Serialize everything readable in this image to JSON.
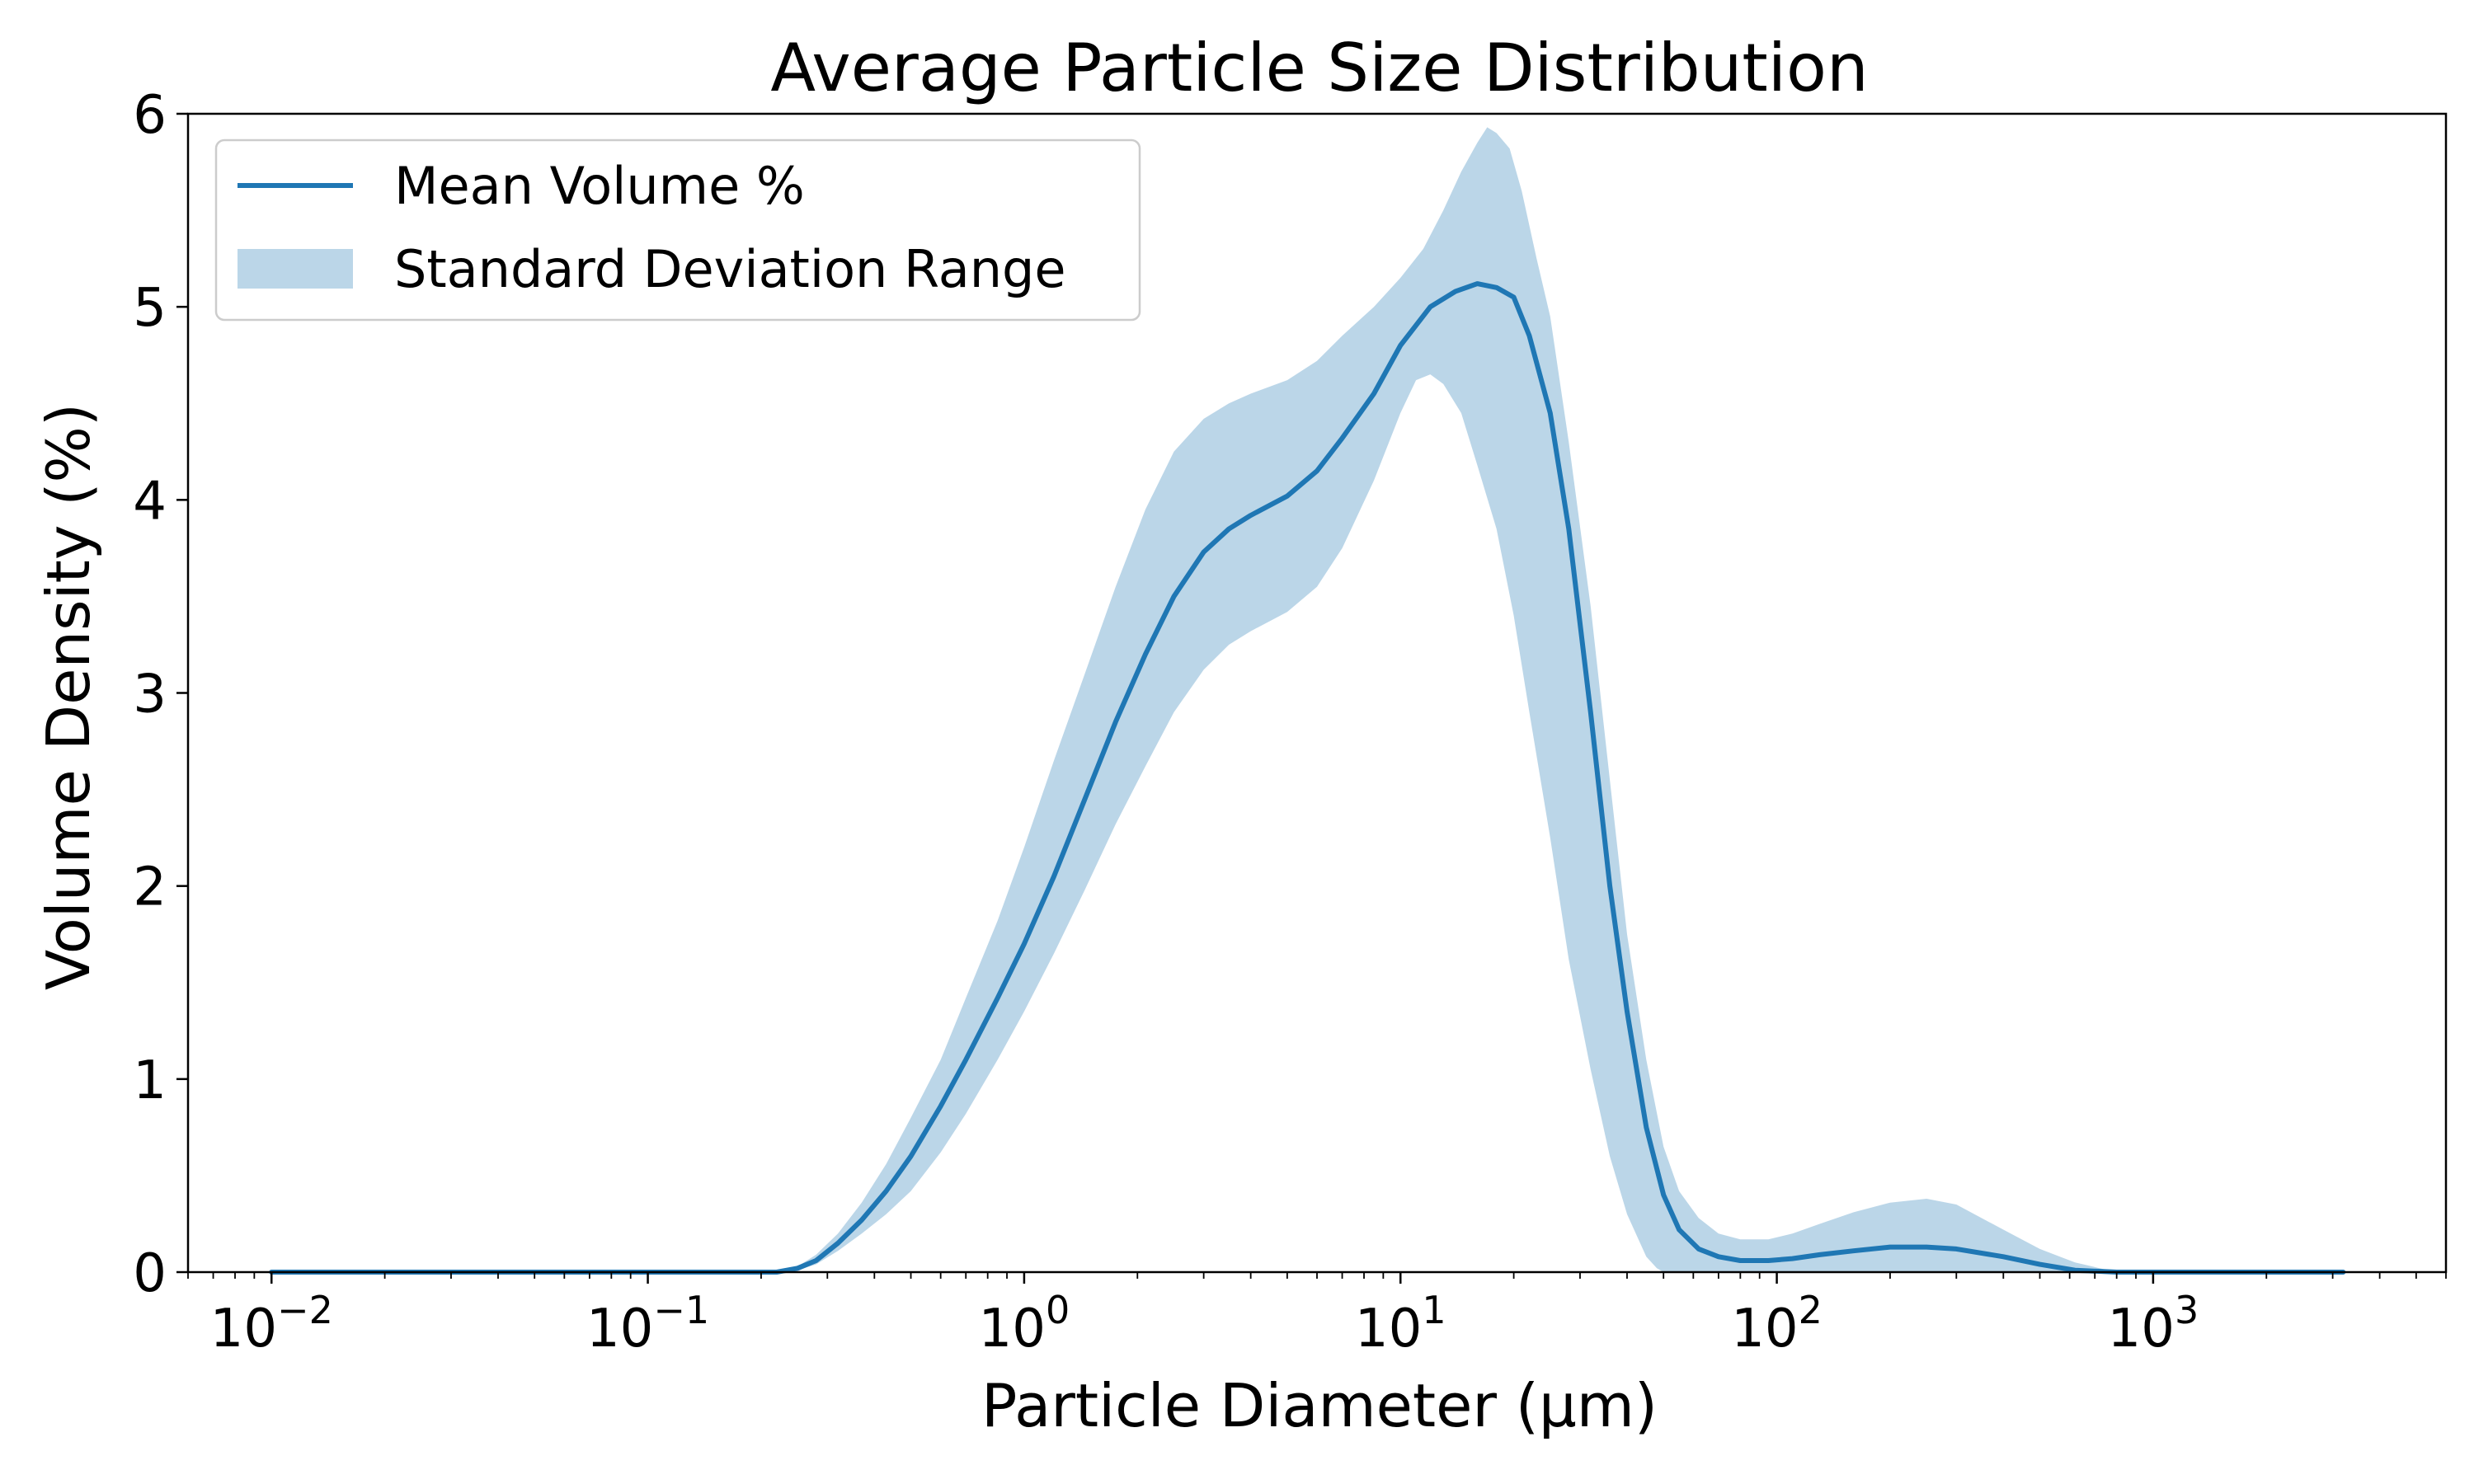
{
  "chart_data": {
    "type": "line",
    "title": "Average Particle Size Distribution",
    "xlabel": "Particle Diameter (µm)",
    "ylabel": "Volume Density (%)",
    "xscale": "log",
    "xlim": [
      0.006,
      6000
    ],
    "ylim": [
      0,
      6
    ],
    "x_ticks": [
      {
        "value": 0.01,
        "base": "10",
        "exp": "−2"
      },
      {
        "value": 0.1,
        "base": "10",
        "exp": "−1"
      },
      {
        "value": 1,
        "base": "10",
        "exp": "0"
      },
      {
        "value": 10,
        "base": "10",
        "exp": "1"
      },
      {
        "value": 100,
        "base": "10",
        "exp": "2"
      },
      {
        "value": 1000,
        "base": "10",
        "exp": "3"
      }
    ],
    "y_ticks": [
      0,
      1,
      2,
      3,
      4,
      5,
      6
    ],
    "grid": false,
    "legend_position": "top-left",
    "legend": [
      {
        "label": "Mean Volume %",
        "kind": "line",
        "color": "#1f77b4"
      },
      {
        "label": "Standard Deviation Range",
        "kind": "band",
        "color": "#aecde5"
      }
    ],
    "colors": {
      "line": "#1f77b4",
      "band": "#1f77b4",
      "band_opacity": 0.3
    },
    "series": [
      {
        "name": "Mean Volume %",
        "x": [
          0.01,
          0.1,
          0.22,
          0.25,
          0.28,
          0.32,
          0.37,
          0.43,
          0.5,
          0.6,
          0.7,
          0.85,
          1.0,
          1.2,
          1.45,
          1.75,
          2.1,
          2.5,
          3.0,
          3.5,
          4.0,
          5.0,
          6.0,
          7.0,
          8.5,
          10.0,
          12.0,
          14.0,
          16.0,
          18.0,
          20.0,
          22.0,
          25.0,
          28.0,
          32.0,
          36.0,
          40.0,
          45.0,
          50.0,
          55.0,
          62.0,
          70.0,
          80.0,
          95.0,
          110.0,
          130.0,
          160.0,
          200.0,
          250.0,
          300.0,
          400.0,
          500.0,
          620.0,
          800.0,
          1000.0,
          3200.0
        ],
        "y": [
          0,
          0,
          0,
          0.02,
          0.06,
          0.15,
          0.27,
          0.42,
          0.6,
          0.86,
          1.1,
          1.42,
          1.7,
          2.05,
          2.45,
          2.85,
          3.2,
          3.5,
          3.73,
          3.85,
          3.92,
          4.02,
          4.15,
          4.32,
          4.55,
          4.8,
          5.0,
          5.08,
          5.12,
          5.1,
          5.05,
          4.85,
          4.45,
          3.85,
          2.9,
          2.0,
          1.35,
          0.75,
          0.4,
          0.22,
          0.12,
          0.08,
          0.06,
          0.06,
          0.07,
          0.09,
          0.11,
          0.13,
          0.13,
          0.12,
          0.08,
          0.04,
          0.01,
          0,
          0,
          0
        ]
      },
      {
        "name": "Standard Deviation Range (upper)",
        "x": [
          0.01,
          0.1,
          0.22,
          0.25,
          0.28,
          0.32,
          0.37,
          0.43,
          0.5,
          0.6,
          0.7,
          0.85,
          1.0,
          1.2,
          1.45,
          1.75,
          2.1,
          2.5,
          3.0,
          3.5,
          4.0,
          5.0,
          6.0,
          7.0,
          8.5,
          10.0,
          11.5,
          13.0,
          14.5,
          16.0,
          17.0,
          18.0,
          19.5,
          21.0,
          23.0,
          25.0,
          28.0,
          32.0,
          36.0,
          40.0,
          45.0,
          50.0,
          55.0,
          62.0,
          70.0,
          80.0,
          95.0,
          110.0,
          130.0,
          160.0,
          200.0,
          250.0,
          300.0,
          400.0,
          500.0,
          620.0,
          800.0,
          1000.0,
          3200.0
        ],
        "y": [
          0,
          0,
          0,
          0.03,
          0.09,
          0.2,
          0.36,
          0.56,
          0.8,
          1.1,
          1.42,
          1.82,
          2.2,
          2.65,
          3.1,
          3.55,
          3.95,
          4.25,
          4.42,
          4.5,
          4.55,
          4.62,
          4.72,
          4.85,
          5.0,
          5.15,
          5.3,
          5.5,
          5.7,
          5.85,
          5.93,
          5.9,
          5.82,
          5.6,
          5.25,
          4.95,
          4.3,
          3.45,
          2.55,
          1.75,
          1.1,
          0.65,
          0.42,
          0.28,
          0.2,
          0.17,
          0.17,
          0.2,
          0.25,
          0.31,
          0.36,
          0.38,
          0.35,
          0.22,
          0.12,
          0.05,
          0,
          0,
          0
        ]
      },
      {
        "name": "Standard Deviation Range (lower)",
        "x": [
          0.01,
          0.1,
          0.22,
          0.25,
          0.28,
          0.32,
          0.37,
          0.43,
          0.5,
          0.6,
          0.7,
          0.85,
          1.0,
          1.2,
          1.45,
          1.75,
          2.1,
          2.5,
          3.0,
          3.5,
          4.0,
          5.0,
          6.0,
          7.0,
          8.5,
          10.0,
          11.0,
          12.0,
          13.0,
          14.5,
          16.0,
          18.0,
          20.0,
          22.0,
          25.0,
          28.0,
          32.0,
          36.0,
          40.0,
          45.0,
          48.0,
          50.0,
          1000.0,
          3200.0
        ],
        "y": [
          0,
          0,
          0,
          0.01,
          0.04,
          0.11,
          0.2,
          0.3,
          0.42,
          0.62,
          0.82,
          1.1,
          1.35,
          1.65,
          1.98,
          2.32,
          2.62,
          2.9,
          3.12,
          3.25,
          3.32,
          3.42,
          3.55,
          3.75,
          4.1,
          4.45,
          4.62,
          4.65,
          4.6,
          4.45,
          4.18,
          3.85,
          3.4,
          2.9,
          2.25,
          1.62,
          1.05,
          0.6,
          0.3,
          0.08,
          0.02,
          0,
          0,
          0
        ]
      }
    ]
  }
}
